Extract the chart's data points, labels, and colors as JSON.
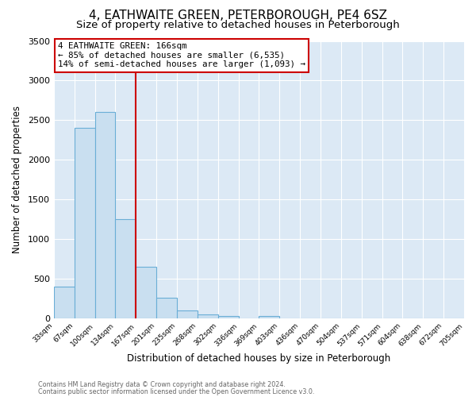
{
  "title": "4, EATHWAITE GREEN, PETERBOROUGH, PE4 6SZ",
  "subtitle": "Size of property relative to detached houses in Peterborough",
  "xlabel": "Distribution of detached houses by size in Peterborough",
  "ylabel": "Number of detached properties",
  "footer_line1": "Contains HM Land Registry data © Crown copyright and database right 2024.",
  "footer_line2": "Contains public sector information licensed under the Open Government Licence v3.0.",
  "bin_labels": [
    "33sqm",
    "67sqm",
    "100sqm",
    "134sqm",
    "167sqm",
    "201sqm",
    "235sqm",
    "268sqm",
    "302sqm",
    "336sqm",
    "369sqm",
    "403sqm",
    "436sqm",
    "470sqm",
    "504sqm",
    "537sqm",
    "571sqm",
    "604sqm",
    "638sqm",
    "672sqm",
    "705sqm"
  ],
  "bar_values": [
    400,
    2400,
    2600,
    1250,
    650,
    260,
    100,
    50,
    30,
    0,
    30,
    0,
    0,
    0,
    0,
    0,
    0,
    0,
    0,
    0
  ],
  "bar_color": "#c9dff0",
  "bar_edge_color": "#6aaed6",
  "ax_background_color": "#dce9f5",
  "fig_background_color": "#ffffff",
  "grid_color": "#ffffff",
  "vline_x": 4.0,
  "vline_color": "#cc0000",
  "ylim": [
    0,
    3500
  ],
  "yticks": [
    0,
    500,
    1000,
    1500,
    2000,
    2500,
    3000,
    3500
  ],
  "annotation_title": "4 EATHWAITE GREEN: 166sqm",
  "annotation_line1": "← 85% of detached houses are smaller (6,535)",
  "annotation_line2": "14% of semi-detached houses are larger (1,093) →",
  "annotation_box_color": "#ffffff",
  "annotation_box_edge": "#cc0000",
  "title_fontsize": 11,
  "subtitle_fontsize": 9.5
}
